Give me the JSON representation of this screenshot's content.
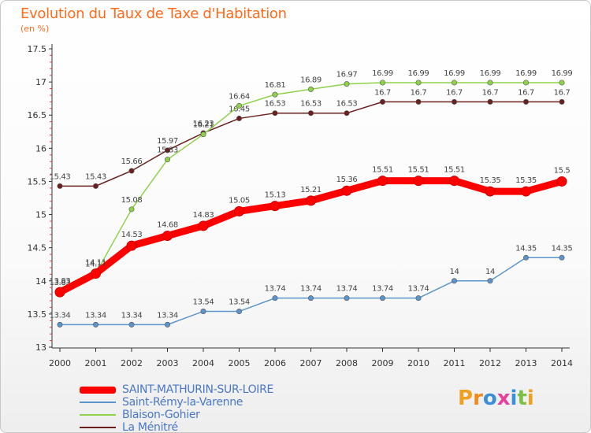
{
  "chart_data": {
    "type": "line",
    "title": "Evolution du Taux de Taxe d'Habitation",
    "subtitle": "(en %)",
    "x": [
      "2000",
      "2001",
      "2002",
      "2003",
      "2004",
      "2005",
      "2006",
      "2007",
      "2008",
      "2009",
      "2010",
      "2011",
      "2012",
      "2013",
      "2014"
    ],
    "yticks": [
      "13",
      "13.5",
      "14",
      "14.5",
      "15",
      "15.5",
      "16",
      "16.5",
      "17",
      "17.5"
    ],
    "ylim": [
      13,
      17.5
    ],
    "grid": false,
    "legend": "bottom-left",
    "series": [
      {
        "name": "La Ménitré",
        "color": "#6b1f1f",
        "values": [
          15.43,
          15.43,
          15.66,
          15.97,
          16.23,
          16.45,
          16.53,
          16.53,
          16.53,
          16.7,
          16.7,
          16.7,
          16.7,
          16.7,
          16.7
        ],
        "labels": [
          "15.43",
          "15.43",
          "15.66",
          "15.97",
          "16.23",
          "16.45",
          "16.53",
          "16.53",
          "16.53",
          "16.7",
          "16.7",
          "16.7",
          "16.7",
          "16.7",
          "16.7"
        ]
      },
      {
        "name": "Blaison-Gohier",
        "color": "#8fd24a",
        "values": [
          13.83,
          14.11,
          15.08,
          15.83,
          16.21,
          16.64,
          16.81,
          16.89,
          16.97,
          16.99,
          16.99,
          16.99,
          16.99,
          16.99,
          16.99
        ],
        "labels": [
          "13.83",
          "14.11",
          "15.08",
          "15.83",
          "16.21",
          "16.64",
          "16.81",
          "16.89",
          "16.97",
          "16.99",
          "16.99",
          "16.99",
          "16.99",
          "16.99",
          "16.99"
        ]
      },
      {
        "name": "Saint-Rémy-la-Varenne",
        "color": "#5b95cc",
        "values": [
          13.34,
          13.34,
          13.34,
          13.34,
          13.54,
          13.54,
          13.74,
          13.74,
          13.74,
          13.74,
          13.74,
          14,
          14,
          14.35,
          14.35
        ],
        "labels": [
          "13.34",
          "13.34",
          "13.34",
          "13.34",
          "13.54",
          "13.54",
          "13.74",
          "13.74",
          "13.74",
          "13.74",
          "13.74",
          "14",
          "14",
          "14.35",
          "14.35"
        ]
      },
      {
        "name": "SAINT-MATHURIN-SUR-LOIRE",
        "color": "#ff0000",
        "values": [
          13.83,
          14.11,
          14.53,
          14.68,
          14.83,
          15.05,
          15.13,
          15.21,
          15.36,
          15.51,
          15.51,
          15.51,
          15.35,
          15.35,
          15.5
        ],
        "labels": [
          "13.83",
          "14.11",
          "14.53",
          "14.68",
          "14.83",
          "15.05",
          "15.13",
          "15.21",
          "15.36",
          "15.51",
          "15.51",
          "15.51",
          "15.35",
          "15.35",
          "15.5"
        ]
      }
    ],
    "legend_order": [
      "SAINT-MATHURIN-SUR-LOIRE",
      "Saint-Rémy-la-Varenne",
      "Blaison-Gohier",
      "La Ménitré"
    ]
  },
  "logo": {
    "text": "Proxiti"
  }
}
